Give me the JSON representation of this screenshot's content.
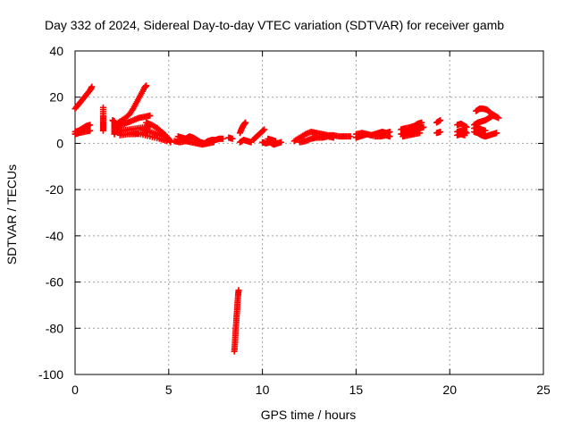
{
  "chart_data": {
    "type": "scatter",
    "title": "Day 332 of 2024, Sidereal Day-to-day VTEC variation (SDTVAR) for receiver gamb",
    "xlabel": "GPS time / hours",
    "ylabel": "SDTVAR / TECUs",
    "xlim": [
      0,
      25
    ],
    "ylim": [
      -100,
      40
    ],
    "x_ticks": [
      0,
      5,
      10,
      15,
      20,
      25
    ],
    "y_ticks": [
      -100,
      -80,
      -60,
      -40,
      -20,
      0,
      20,
      40
    ],
    "grid": true,
    "marker": "+",
    "colors": {
      "series": "#ff0000",
      "grid": "#a0a0a0",
      "axes": "#000000"
    },
    "series": [
      {
        "name": "seg-0a",
        "points": [
          [
            0.0,
            15
          ],
          [
            0.2,
            17
          ],
          [
            0.4,
            19
          ],
          [
            0.6,
            21
          ],
          [
            0.8,
            23
          ],
          [
            0.9,
            24.5
          ]
        ]
      },
      {
        "name": "seg-0b",
        "points": [
          [
            0.0,
            5
          ],
          [
            0.2,
            5.5
          ],
          [
            0.4,
            6.5
          ],
          [
            0.6,
            7.5
          ],
          [
            0.8,
            8
          ]
        ]
      },
      {
        "name": "seg-0c",
        "points": [
          [
            0.0,
            4
          ],
          [
            0.2,
            4.5
          ],
          [
            0.5,
            5
          ],
          [
            0.8,
            5.5
          ]
        ]
      },
      {
        "name": "seg-1",
        "points": [
          [
            1.5,
            15.5
          ],
          [
            1.5,
            12
          ],
          [
            1.5,
            9.5
          ],
          [
            1.5,
            7.5
          ],
          [
            1.5,
            5.5
          ]
        ]
      },
      {
        "name": "seg-2",
        "points": [
          [
            2.0,
            10
          ],
          [
            2.1,
            9.5
          ],
          [
            2.1,
            7.5
          ],
          [
            2.1,
            5.5
          ],
          [
            2.1,
            4
          ]
        ]
      },
      {
        "name": "seg-3a",
        "points": [
          [
            2.3,
            9
          ],
          [
            2.6,
            10.5
          ],
          [
            2.9,
            12.5
          ],
          [
            3.1,
            15
          ],
          [
            3.3,
            18
          ],
          [
            3.5,
            21
          ],
          [
            3.7,
            24
          ],
          [
            3.8,
            25
          ]
        ]
      },
      {
        "name": "seg-3b",
        "points": [
          [
            2.2,
            7
          ],
          [
            2.5,
            8
          ],
          [
            2.8,
            9
          ],
          [
            3.1,
            10
          ],
          [
            3.4,
            11
          ],
          [
            3.7,
            11.5
          ],
          [
            4.0,
            12
          ]
        ]
      },
      {
        "name": "seg-3c",
        "points": [
          [
            2.2,
            5
          ],
          [
            2.5,
            5.5
          ],
          [
            2.9,
            6
          ],
          [
            3.3,
            6.5
          ],
          [
            3.7,
            7
          ],
          [
            4.0,
            7.5
          ]
        ]
      },
      {
        "name": "seg-3d",
        "points": [
          [
            2.4,
            3.5
          ],
          [
            2.8,
            4
          ],
          [
            3.2,
            4
          ],
          [
            3.6,
            4.5
          ],
          [
            4.0,
            5
          ]
        ]
      },
      {
        "name": "seg-4a",
        "points": [
          [
            3.8,
            9
          ],
          [
            4.1,
            8
          ],
          [
            4.4,
            6.5
          ],
          [
            4.7,
            4.5
          ],
          [
            5.0,
            2
          ],
          [
            5.1,
            0.5
          ]
        ]
      },
      {
        "name": "seg-4b",
        "points": [
          [
            3.6,
            6
          ],
          [
            4.0,
            5
          ],
          [
            4.4,
            4
          ],
          [
            4.8,
            3
          ],
          [
            5.0,
            2
          ]
        ]
      },
      {
        "name": "seg-4c",
        "points": [
          [
            3.0,
            4.5
          ],
          [
            3.5,
            4
          ],
          [
            4.0,
            3
          ],
          [
            4.5,
            2
          ],
          [
            4.9,
            1
          ]
        ]
      },
      {
        "name": "seg-5",
        "points": [
          [
            5.5,
            3
          ],
          [
            5.7,
            2.5
          ],
          [
            5.9,
            2
          ],
          [
            6.1,
            3
          ],
          [
            6.3,
            2.5
          ],
          [
            6.5,
            1.5
          ],
          [
            6.7,
            0.5
          ],
          [
            6.9,
            0
          ],
          [
            7.1,
            1
          ],
          [
            7.3,
            1.5
          ],
          [
            7.5,
            1.5
          ],
          [
            7.7,
            2
          ],
          [
            7.9,
            2
          ]
        ]
      },
      {
        "name": "seg-5b",
        "points": [
          [
            5.3,
            1
          ],
          [
            5.6,
            0.5
          ],
          [
            5.9,
            1
          ],
          [
            6.2,
            0.5
          ],
          [
            6.5,
            0
          ],
          [
            6.8,
            -0.5
          ],
          [
            7.1,
            0
          ],
          [
            7.4,
            0.5
          ]
        ]
      },
      {
        "name": "seg-6",
        "points": [
          [
            8.2,
            2.5
          ],
          [
            8.4,
            2
          ]
        ]
      },
      {
        "name": "seg-7",
        "points": [
          [
            8.5,
            -90
          ],
          [
            8.53,
            -87
          ],
          [
            8.55,
            -84
          ],
          [
            8.57,
            -81
          ],
          [
            8.6,
            -78
          ],
          [
            8.62,
            -75
          ],
          [
            8.65,
            -72
          ],
          [
            8.67,
            -69
          ],
          [
            8.7,
            -66
          ],
          [
            8.73,
            -63.5
          ]
        ]
      },
      {
        "name": "seg-8a",
        "points": [
          [
            8.8,
            4.5
          ],
          [
            8.9,
            6.5
          ],
          [
            9.0,
            8
          ],
          [
            9.1,
            9
          ]
        ]
      },
      {
        "name": "seg-8b",
        "points": [
          [
            8.8,
            0.5
          ],
          [
            9.0,
            1.5
          ],
          [
            9.2,
            1
          ],
          [
            9.4,
            0.5
          ]
        ]
      },
      {
        "name": "seg-8c",
        "points": [
          [
            9.5,
            1.5
          ],
          [
            9.7,
            3
          ],
          [
            9.9,
            4.5
          ],
          [
            10.1,
            6
          ]
        ]
      },
      {
        "name": "seg-8d",
        "points": [
          [
            10.0,
            0.5
          ],
          [
            10.2,
            0
          ],
          [
            10.4,
            0.5
          ],
          [
            10.6,
            -0.5
          ],
          [
            10.8,
            0
          ],
          [
            11.0,
            0.5
          ]
        ]
      },
      {
        "name": "seg-8e",
        "points": [
          [
            10.3,
            2
          ],
          [
            10.5,
            1.5
          ],
          [
            10.7,
            1
          ]
        ]
      },
      {
        "name": "seg-9",
        "points": [
          [
            11.7,
            1
          ],
          [
            12.0,
            2.5
          ],
          [
            12.3,
            4
          ],
          [
            12.6,
            5
          ],
          [
            12.9,
            4.5
          ],
          [
            13.2,
            4
          ],
          [
            13.5,
            3.5
          ],
          [
            13.8,
            3.5
          ],
          [
            14.1,
            3
          ],
          [
            14.4,
            3
          ],
          [
            14.7,
            3
          ]
        ]
      },
      {
        "name": "seg-9b",
        "points": [
          [
            12.0,
            0.5
          ],
          [
            12.3,
            1
          ],
          [
            12.6,
            2
          ],
          [
            12.9,
            2.5
          ],
          [
            13.2,
            2.5
          ],
          [
            13.5,
            3
          ],
          [
            13.8,
            2.5
          ]
        ]
      },
      {
        "name": "seg-10",
        "points": [
          [
            15.0,
            2.5
          ],
          [
            15.2,
            3
          ],
          [
            15.4,
            3.5
          ],
          [
            15.6,
            4
          ],
          [
            15.8,
            3.5
          ],
          [
            16.0,
            4
          ],
          [
            16.2,
            4.5
          ],
          [
            16.4,
            5
          ],
          [
            16.6,
            4.5
          ],
          [
            16.8,
            5
          ]
        ]
      },
      {
        "name": "seg-10b",
        "points": [
          [
            15.0,
            4
          ],
          [
            15.3,
            4.5
          ],
          [
            15.6,
            4
          ],
          [
            16.0,
            3
          ],
          [
            16.3,
            3
          ],
          [
            16.6,
            3.5
          ],
          [
            16.8,
            3
          ]
        ]
      },
      {
        "name": "seg-11",
        "points": [
          [
            17.4,
            4
          ],
          [
            17.6,
            4.5
          ],
          [
            17.8,
            5
          ],
          [
            18.0,
            5.5
          ],
          [
            18.2,
            6
          ],
          [
            18.4,
            6.5
          ],
          [
            18.6,
            7
          ]
        ]
      },
      {
        "name": "seg-11b",
        "points": [
          [
            17.4,
            6
          ],
          [
            17.6,
            6.5
          ],
          [
            17.9,
            7
          ],
          [
            18.1,
            7.5
          ],
          [
            18.3,
            8.5
          ],
          [
            18.5,
            9
          ]
        ]
      },
      {
        "name": "seg-11c",
        "points": [
          [
            17.5,
            3
          ],
          [
            17.8,
            3.5
          ],
          [
            18.1,
            4
          ],
          [
            18.4,
            4.5
          ]
        ]
      },
      {
        "name": "seg-12",
        "points": [
          [
            19.3,
            9
          ],
          [
            19.5,
            10
          ]
        ]
      },
      {
        "name": "seg-12b",
        "points": [
          [
            19.3,
            4.5
          ],
          [
            19.5,
            5
          ]
        ]
      },
      {
        "name": "seg-13",
        "points": [
          [
            20.4,
            8
          ],
          [
            20.6,
            8.5
          ],
          [
            20.8,
            7.5
          ],
          [
            20.9,
            7
          ]
        ]
      },
      {
        "name": "seg-13b",
        "points": [
          [
            20.4,
            5
          ],
          [
            20.6,
            5.5
          ],
          [
            20.8,
            5
          ],
          [
            20.9,
            4.5
          ]
        ]
      },
      {
        "name": "seg-13c",
        "points": [
          [
            20.4,
            3.5
          ],
          [
            20.6,
            4
          ],
          [
            20.8,
            3.5
          ]
        ]
      },
      {
        "name": "seg-14a",
        "points": [
          [
            21.4,
            14
          ],
          [
            21.6,
            15
          ],
          [
            21.8,
            15
          ],
          [
            22.0,
            14.5
          ],
          [
            22.2,
            13
          ],
          [
            22.4,
            12
          ],
          [
            22.6,
            11
          ]
        ]
      },
      {
        "name": "seg-14b",
        "points": [
          [
            21.3,
            8
          ],
          [
            21.5,
            9
          ],
          [
            21.7,
            9.5
          ],
          [
            21.9,
            10
          ],
          [
            22.1,
            11
          ],
          [
            22.3,
            12
          ],
          [
            22.5,
            11.5
          ]
        ]
      },
      {
        "name": "seg-14c",
        "points": [
          [
            21.3,
            5
          ],
          [
            21.5,
            4.5
          ],
          [
            21.7,
            3.5
          ],
          [
            21.9,
            3
          ],
          [
            22.1,
            3.5
          ],
          [
            22.3,
            4
          ],
          [
            22.5,
            4.5
          ]
        ]
      },
      {
        "name": "seg-14d",
        "points": [
          [
            21.3,
            6.5
          ],
          [
            21.5,
            7
          ],
          [
            21.7,
            6
          ],
          [
            21.9,
            5.5
          ]
        ]
      }
    ]
  }
}
